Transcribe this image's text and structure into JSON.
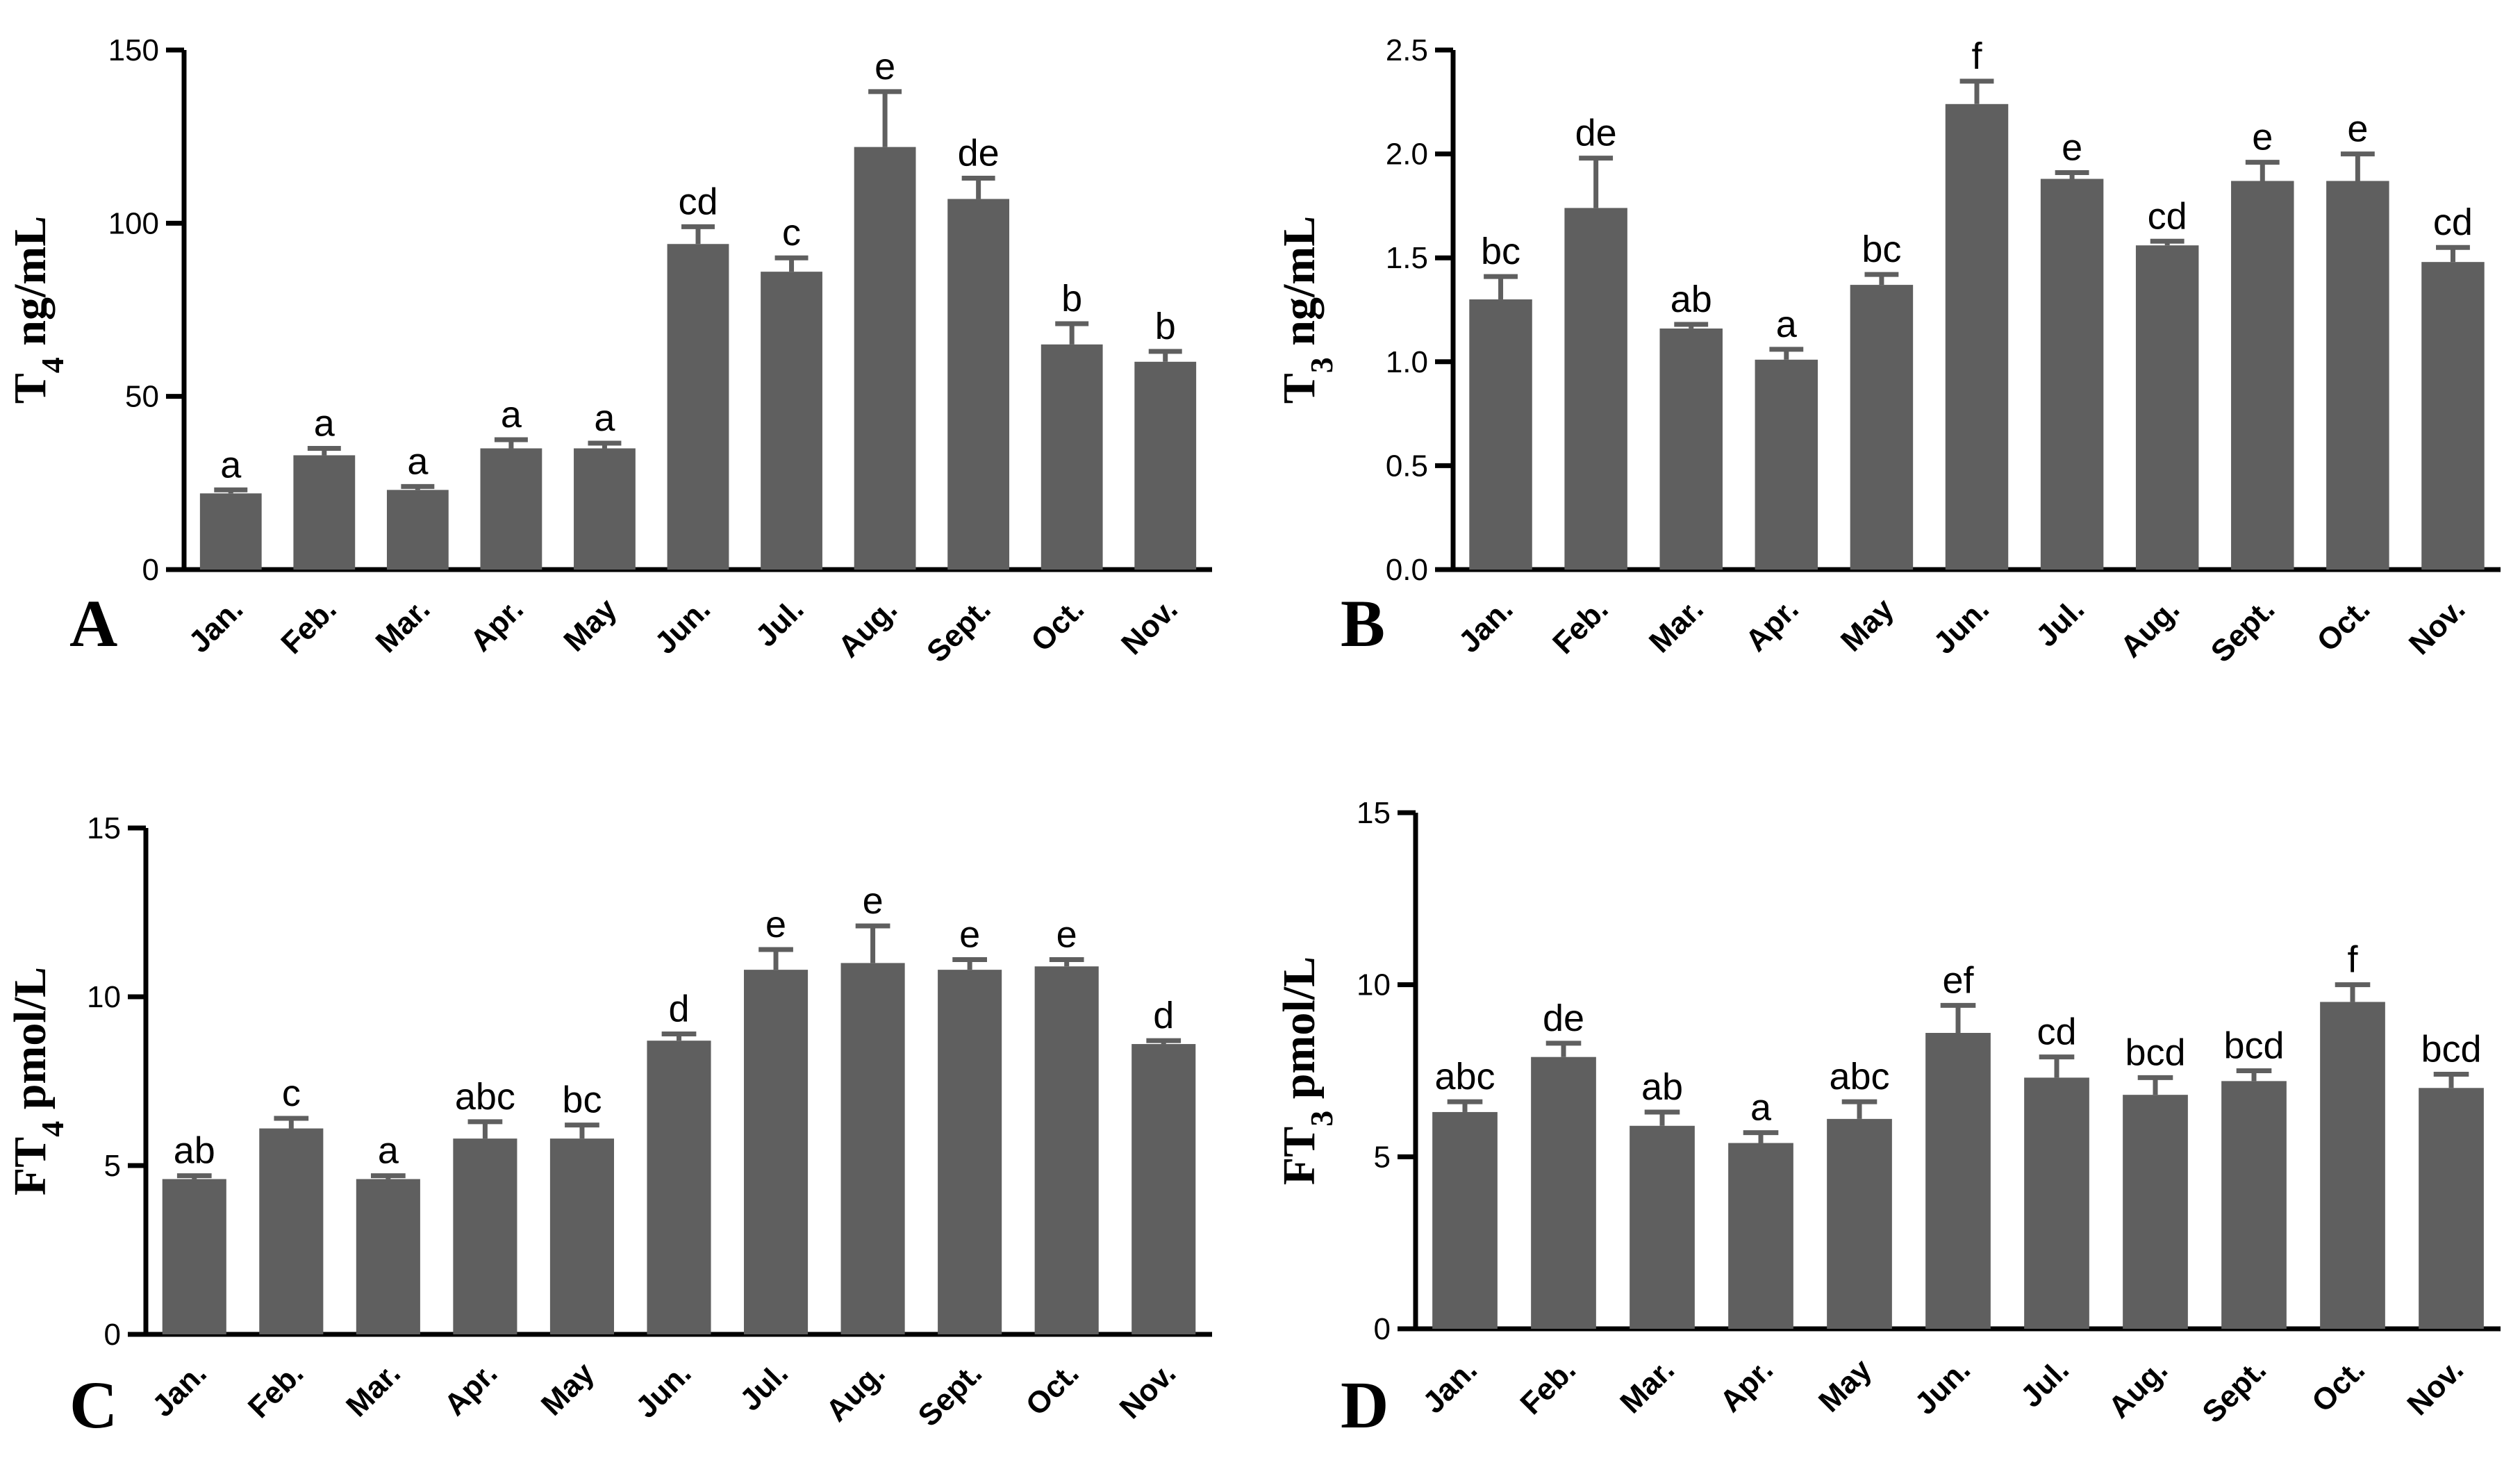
{
  "colors": {
    "bar": "#5f5f5f",
    "axis": "#000000",
    "background": "#ffffff"
  },
  "chart_data": [
    {
      "type": "bar",
      "panel": "A",
      "ylabel_prefix": "T",
      "ylabel_sub": "4",
      "ylabel_suffix": " ng/mL",
      "categories": [
        "Jan.",
        "Feb.",
        "Mar.",
        "Apr.",
        "May",
        "Jun.",
        "Jul.",
        "Aug.",
        "Sept.",
        "Oct.",
        "Nov."
      ],
      "values": [
        22,
        33,
        23,
        35,
        35,
        94,
        86,
        122,
        107,
        65,
        60
      ],
      "errors": [
        1,
        2,
        1,
        2.5,
        1.5,
        5,
        4,
        16,
        6,
        6,
        3
      ],
      "significance": [
        "a",
        "a",
        "a",
        "a",
        "a",
        "cd",
        "c",
        "e",
        "de",
        "b",
        "b"
      ],
      "ylim": [
        0,
        150
      ],
      "yticks": [
        0,
        50,
        100,
        150
      ]
    },
    {
      "type": "bar",
      "panel": "B",
      "ylabel_prefix": "T",
      "ylabel_sub": "3",
      "ylabel_suffix": " ng/mL",
      "categories": [
        "Jan.",
        "Feb.",
        "Mar.",
        "Apr.",
        "May",
        "Jun.",
        "Jul.",
        "Aug.",
        "Sept.",
        "Oct.",
        "Nov."
      ],
      "values": [
        1.3,
        1.74,
        1.16,
        1.01,
        1.37,
        2.24,
        1.88,
        1.56,
        1.87,
        1.87,
        1.48
      ],
      "errors": [
        0.11,
        0.24,
        0.02,
        0.05,
        0.05,
        0.11,
        0.03,
        0.02,
        0.09,
        0.13,
        0.07
      ],
      "significance": [
        "bc",
        "de",
        "ab",
        "a",
        "bc",
        "f",
        "e",
        "cd",
        "e",
        "e",
        "cd"
      ],
      "ylim": [
        0,
        2.5
      ],
      "yticks": [
        "0.0",
        "0.5",
        "1.0",
        "1.5",
        "2.0",
        "2.5"
      ]
    },
    {
      "type": "bar",
      "panel": "C",
      "ylabel_prefix": "FT",
      "ylabel_sub": "4",
      "ylabel_suffix": " pmol/L",
      "categories": [
        "Jan.",
        "Feb.",
        "Mar.",
        "Apr.",
        "May",
        "Jun.",
        "Jul.",
        "Aug.",
        "Sept.",
        "Oct.",
        "Nov."
      ],
      "values": [
        4.6,
        6.1,
        4.6,
        5.8,
        5.8,
        8.7,
        10.8,
        11.0,
        10.8,
        10.9,
        8.6
      ],
      "errors": [
        0.1,
        0.3,
        0.1,
        0.5,
        0.4,
        0.2,
        0.6,
        1.1,
        0.3,
        0.2,
        0.1
      ],
      "significance": [
        "ab",
        "c",
        "a",
        "abc",
        "bc",
        "d",
        "e",
        "e",
        "e",
        "e",
        "d"
      ],
      "ylim": [
        0,
        15
      ],
      "yticks": [
        0,
        5,
        10,
        15
      ]
    },
    {
      "type": "bar",
      "panel": "D",
      "ylabel_prefix": "FT",
      "ylabel_sub": "3",
      "ylabel_suffix": " pmol/L",
      "categories": [
        "Jan.",
        "Feb.",
        "Mar.",
        "Apr.",
        "May",
        "Jun.",
        "Jul.",
        "Aug.",
        "Sept.",
        "Oct.",
        "Nov."
      ],
      "values": [
        6.3,
        7.9,
        5.9,
        5.4,
        6.1,
        8.6,
        7.3,
        6.8,
        7.2,
        9.5,
        7.0
      ],
      "errors": [
        0.3,
        0.4,
        0.4,
        0.3,
        0.5,
        0.8,
        0.6,
        0.5,
        0.3,
        0.5,
        0.4
      ],
      "significance": [
        "abc",
        "de",
        "ab",
        "a",
        "abc",
        "ef",
        "cd",
        "bcd",
        "bcd",
        "f",
        "bcd"
      ],
      "ylim": [
        0,
        15
      ],
      "yticks": [
        0,
        5,
        10,
        15
      ]
    }
  ]
}
